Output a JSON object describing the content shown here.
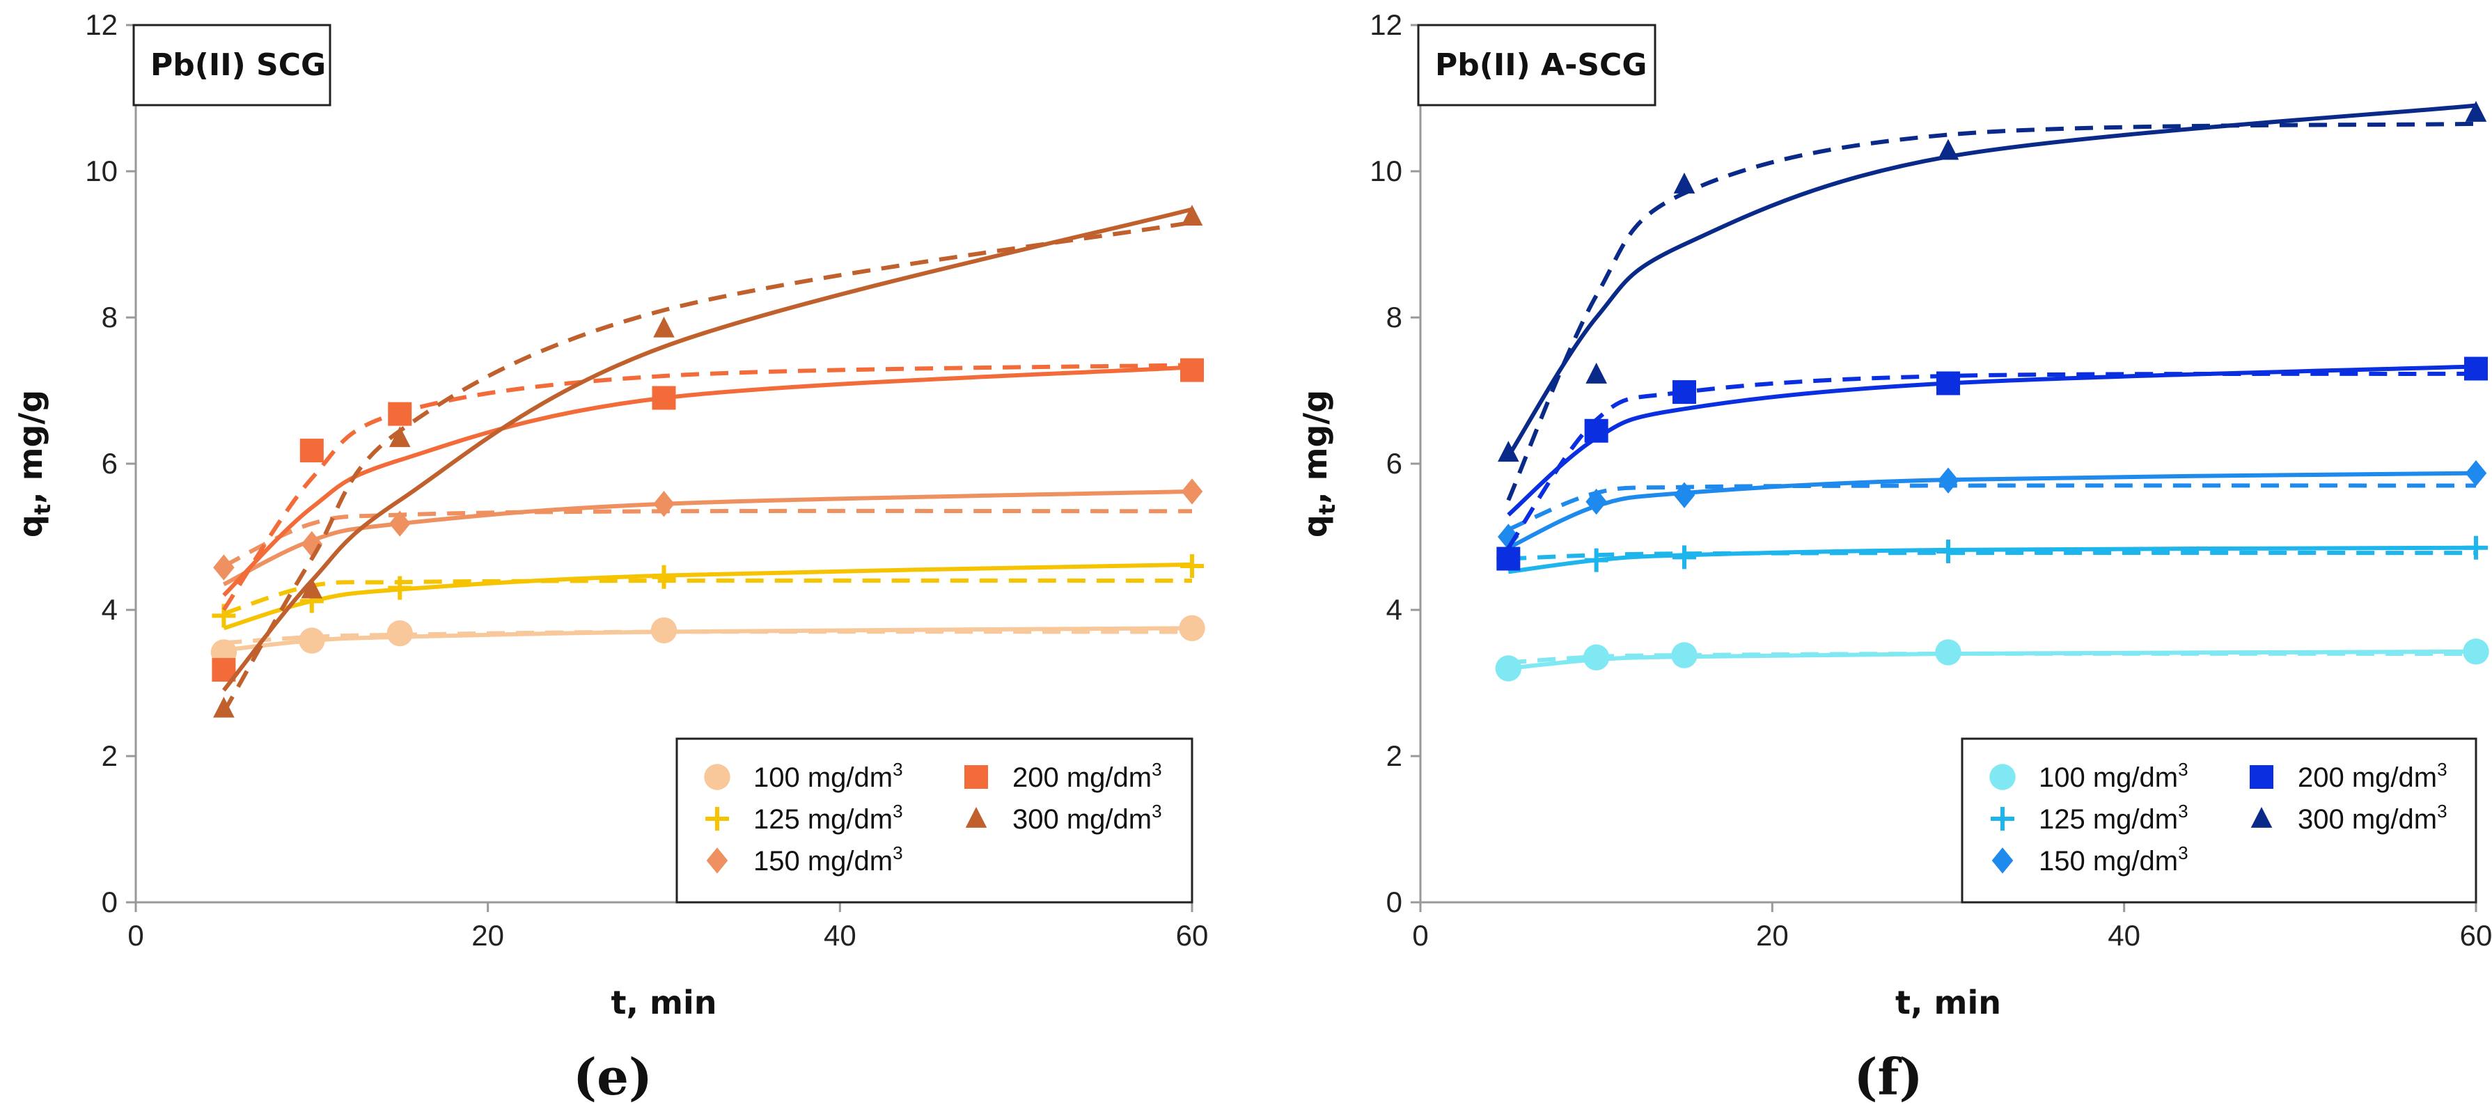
{
  "chart_data": [
    {
      "type": "line",
      "panel_label": "Pb(II) SCG",
      "subfigure": "(e)",
      "xlabel": "t, min",
      "ylabel": "qt, mg/g",
      "ylabel_main": "q",
      "ylabel_sub": "t",
      "ylabel_rest": ", mg/g",
      "xlim": [
        0,
        60
      ],
      "ylim": [
        0,
        12
      ],
      "xticks": [
        "0",
        "20",
        "40",
        "60"
      ],
      "yticks": [
        "0",
        "2",
        "4",
        "6",
        "8",
        "10",
        "12"
      ],
      "x": [
        5,
        10,
        15,
        30,
        60
      ],
      "series": [
        {
          "name": "100 mg/dm",
          "unit_sup": "3",
          "color": "#F8C89A",
          "marker": "circle",
          "values": [
            3.42,
            3.58,
            3.68,
            3.72,
            3.75
          ],
          "fit_solid": [
            3.45,
            3.58,
            3.63,
            3.7,
            3.75
          ],
          "fit_dashed": [
            3.55,
            3.63,
            3.66,
            3.7,
            3.7
          ]
        },
        {
          "name": "125 mg/dm",
          "unit_sup": "3",
          "color": "#F5C300",
          "marker": "plus",
          "values": [
            3.92,
            4.12,
            4.3,
            4.45,
            4.6
          ],
          "fit_solid": [
            3.75,
            4.12,
            4.28,
            4.47,
            4.62
          ],
          "fit_dashed": [
            3.95,
            4.33,
            4.38,
            4.4,
            4.4
          ]
        },
        {
          "name": "150 mg/dm",
          "unit_sup": "3",
          "color": "#EE9060",
          "marker": "diamond",
          "values": [
            4.58,
            4.9,
            5.18,
            5.45,
            5.62
          ],
          "fit_solid": [
            4.35,
            4.95,
            5.18,
            5.45,
            5.62
          ],
          "fit_dashed": [
            4.6,
            5.18,
            5.3,
            5.35,
            5.35
          ]
        },
        {
          "name": "200 mg/dm",
          "unit_sup": "3",
          "color": "#F26B38",
          "marker": "square",
          "values": [
            3.18,
            6.18,
            6.68,
            6.9,
            7.28
          ],
          "fit_solid": [
            4.2,
            5.4,
            6.05,
            6.9,
            7.32
          ],
          "fit_dashed": [
            4.0,
            5.8,
            6.7,
            7.2,
            7.35
          ]
        },
        {
          "name": "300 mg/dm",
          "unit_sup": "3",
          "color": "#C0602C",
          "marker": "triangle",
          "values": [
            2.65,
            4.28,
            6.35,
            7.85,
            9.38
          ],
          "fit_solid": [
            2.9,
            4.4,
            5.5,
            7.6,
            9.48
          ],
          "fit_dashed": [
            2.6,
            4.7,
            6.45,
            8.1,
            9.3
          ]
        }
      ],
      "legend_position": "bottom-right"
    },
    {
      "type": "line",
      "panel_label": "Pb(II) A-SCG",
      "subfigure": "(f)",
      "xlabel": "t, min",
      "ylabel": "qt, mg/g",
      "ylabel_main": "q",
      "ylabel_sub": "t",
      "ylabel_rest": ", mg/g",
      "xlim": [
        0,
        60
      ],
      "ylim": [
        0,
        12
      ],
      "xticks": [
        "0",
        "20",
        "40",
        "60"
      ],
      "yticks": [
        "0",
        "2",
        "4",
        "6",
        "8",
        "10",
        "12"
      ],
      "x": [
        5,
        10,
        15,
        30,
        60
      ],
      "series": [
        {
          "name": "100 mg/dm",
          "unit_sup": "3",
          "color": "#7FE8F2",
          "marker": "circle",
          "values": [
            3.2,
            3.35,
            3.38,
            3.42,
            3.43
          ],
          "fit_solid": [
            3.2,
            3.32,
            3.36,
            3.4,
            3.43
          ],
          "fit_dashed": [
            3.28,
            3.36,
            3.38,
            3.4,
            3.4
          ]
        },
        {
          "name": "125 mg/dm",
          "unit_sup": "3",
          "color": "#1EB5EC",
          "marker": "plus",
          "values": [
            4.7,
            4.68,
            4.72,
            4.8,
            4.85
          ],
          "fit_solid": [
            4.52,
            4.68,
            4.75,
            4.82,
            4.85
          ],
          "fit_dashed": [
            4.7,
            4.75,
            4.77,
            4.78,
            4.78
          ]
        },
        {
          "name": "150 mg/dm",
          "unit_sup": "3",
          "color": "#1E8AEE",
          "marker": "diamond",
          "values": [
            5.0,
            5.48,
            5.57,
            5.77,
            5.87
          ],
          "fit_solid": [
            4.85,
            5.42,
            5.6,
            5.78,
            5.87
          ],
          "fit_dashed": [
            5.1,
            5.6,
            5.68,
            5.7,
            5.7
          ]
        },
        {
          "name": "200 mg/dm",
          "unit_sup": "3",
          "color": "#0A2FE0",
          "marker": "square",
          "values": [
            4.7,
            6.45,
            6.98,
            7.1,
            7.3
          ],
          "fit_solid": [
            5.3,
            6.35,
            6.75,
            7.1,
            7.33
          ],
          "fit_dashed": [
            4.85,
            6.6,
            6.98,
            7.2,
            7.23
          ]
        },
        {
          "name": "300 mg/dm",
          "unit_sup": "3",
          "color": "#0A2A8A",
          "marker": "triangle",
          "values": [
            6.15,
            7.22,
            9.82,
            10.28,
            10.8
          ],
          "fit_solid": [
            6.1,
            8.0,
            9.0,
            10.2,
            10.9
          ],
          "fit_dashed": [
            5.5,
            8.3,
            9.7,
            10.5,
            10.65
          ]
        }
      ],
      "legend_position": "bottom-right"
    }
  ]
}
